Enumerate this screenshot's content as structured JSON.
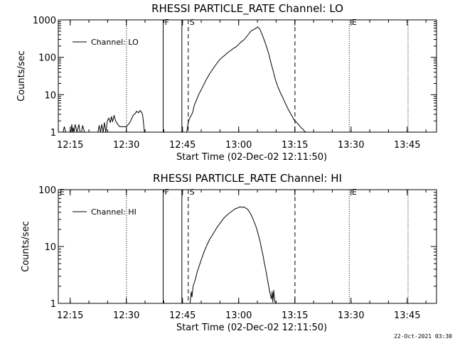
{
  "chart_data": [
    {
      "type": "line",
      "title": "RHESSI PARTICLE_RATE Channel: LO",
      "xlabel": "Start Time (02-Dec-02 12:11:50)",
      "ylabel": "Counts/sec",
      "yscale": "log",
      "ylim": [
        1,
        1000
      ],
      "xlim_minutes": [
        0,
        101
      ],
      "x_ticks": [
        "12:15",
        "12:30",
        "12:45",
        "13:00",
        "13:15",
        "13:30",
        "13:45"
      ],
      "x_tick_minutes": [
        3.17,
        18.17,
        33.17,
        48.17,
        63.17,
        78.17,
        93.17
      ],
      "y_ticks": [
        1,
        10,
        100,
        1000
      ],
      "y_tick_labels": [
        "1",
        "10",
        "100",
        "1000"
      ],
      "legend": "Channel: LO",
      "markers": [
        {
          "label": "F",
          "minute": 28,
          "style": "solid"
        },
        {
          "label": "",
          "minute": 33,
          "style": "solid"
        },
        {
          "label": "S",
          "minute": 34.7,
          "style": "dashed"
        },
        {
          "label": "",
          "minute": 63.2,
          "style": "dashed"
        },
        {
          "label": "",
          "minute": 18.2,
          "style": "dotted"
        },
        {
          "label": "",
          "minute": 77.7,
          "style": "dotted"
        },
        {
          "label": "E",
          "minute": 78,
          "style": "text"
        },
        {
          "label": "",
          "minute": 93.4,
          "style": "dotted"
        }
      ],
      "series": [
        {
          "name": "Channel: LO",
          "x": [
            0,
            1,
            1.3,
            1.6,
            2.0,
            3.4,
            3.6,
            3.8,
            4.0,
            4.2,
            4.5,
            5.0,
            5.5,
            5.8,
            6.2,
            6.5,
            7.0,
            10.6,
            10.9,
            11.3,
            11.6,
            12.0,
            12.3,
            12.7,
            13.1,
            13.5,
            13.9,
            14.2,
            14.5,
            14.9,
            15.3,
            15.9,
            16.4,
            16.9,
            17.5,
            18.2,
            19.1,
            20.0,
            20.6,
            20.9,
            21.4,
            21.9,
            22.5,
            22.8,
            23.0,
            34.3,
            34.7,
            35.0,
            35.4,
            35.9,
            36.3,
            36.8,
            37.5,
            38.4,
            39.4,
            40.4,
            41.4,
            42.3,
            43.3,
            44.3,
            45.4,
            46.4,
            47.6,
            48.7,
            49.7,
            50.6,
            51.5,
            52.3,
            52.9,
            53.3,
            53.8,
            54.3,
            54.8,
            55.3,
            55.8,
            56.3,
            56.8,
            57.4,
            58.0,
            58.7,
            59.3,
            60.0,
            60.7,
            61.5,
            62.3,
            63.0,
            63.7,
            64.4,
            64.9,
            65.3,
            65.6,
            65.8,
            66.1
          ],
          "y": [
            null,
            null,
            1,
            1.4,
            1,
            1,
            1.6,
            1,
            1.3,
            1,
            1.6,
            1,
            1.6,
            1,
            1,
            1.5,
            1,
            1,
            1.5,
            1,
            1.6,
            1,
            1.8,
            1,
            2.0,
            2.4,
            1.8,
            2.6,
            1.9,
            2.8,
            2.0,
            1.6,
            1.4,
            1.4,
            1.4,
            1.4,
            1.8,
            2.8,
            3.2,
            3.6,
            3.3,
            3.8,
            3.0,
            1.6,
            1,
            1,
            1.8,
            2.3,
            2.7,
            3.4,
            5.2,
            6.8,
            10.2,
            15.2,
            24,
            36,
            51,
            68,
            91,
            110,
            137,
            162,
            196,
            250,
            300,
            390,
            510,
            560,
            610,
            650,
            570,
            440,
            330,
            235,
            168,
            112,
            70,
            43,
            24.5,
            15.7,
            11.3,
            8.2,
            5.7,
            3.9,
            2.8,
            2.1,
            1.8,
            1.5,
            1.3,
            1.2,
            1.1,
            1.05,
            1
          ]
        }
      ]
    },
    {
      "type": "line",
      "title": "RHESSI PARTICLE_RATE Channel: HI",
      "xlabel": "Start Time (02-Dec-02 12:11:50)",
      "ylabel": "Counts/sec",
      "yscale": "log",
      "ylim": [
        1,
        100
      ],
      "xlim_minutes": [
        0,
        101
      ],
      "x_ticks": [
        "12:15",
        "12:30",
        "12:45",
        "13:00",
        "13:15",
        "13:30",
        "13:45"
      ],
      "x_tick_minutes": [
        3.17,
        18.17,
        33.17,
        48.17,
        63.17,
        78.17,
        93.17
      ],
      "y_ticks": [
        1,
        10,
        100
      ],
      "y_tick_labels": [
        "1",
        "10",
        "100"
      ],
      "legend": "Channel: HI",
      "markers": [
        {
          "label": "E",
          "minute": 0,
          "style": "text"
        },
        {
          "label": "F",
          "minute": 28,
          "style": "solid"
        },
        {
          "label": "",
          "minute": 33,
          "style": "solid"
        },
        {
          "label": "S",
          "minute": 34.7,
          "style": "dashed"
        },
        {
          "label": "",
          "minute": 63.2,
          "style": "dashed"
        },
        {
          "label": "",
          "minute": 18.2,
          "style": "dotted"
        },
        {
          "label": "",
          "minute": 77.7,
          "style": "dotted"
        },
        {
          "label": "E",
          "minute": 78,
          "style": "text"
        },
        {
          "label": "",
          "minute": 93.4,
          "style": "dotted"
        }
      ],
      "series": [
        {
          "name": "Channel: HI",
          "x": [
            35.2,
            35.5,
            35.7,
            36.0,
            36.3,
            36.7,
            37.1,
            37.6,
            38.2,
            38.8,
            39.6,
            40.4,
            41.4,
            42.3,
            43.3,
            44.3,
            45.4,
            46.3,
            47.1,
            47.8,
            48.5,
            49.1,
            49.6,
            50.1,
            50.6,
            51.1,
            51.7,
            52.3,
            52.9,
            53.4,
            53.9,
            54.3,
            54.7,
            55.0,
            55.4,
            55.7,
            56.0,
            56.3,
            56.6,
            56.9,
            57.1,
            57.3,
            57.5,
            57.7,
            57.9,
            58.0
          ],
          "y": [
            1,
            1.6,
            1.3,
            2.0,
            2.3,
            2.8,
            3.6,
            4.5,
            5.9,
            7.7,
            10.3,
            13.3,
            17.0,
            21.3,
            26.3,
            32,
            37.5,
            41.5,
            45.5,
            47.5,
            50,
            49,
            49.5,
            47,
            45,
            40,
            34,
            27,
            21.5,
            16.2,
            12.2,
            9.0,
            6.9,
            5.2,
            3.9,
            3.0,
            2.3,
            1.8,
            1.45,
            1.2,
            1.6,
            1.05,
            1.7,
            1.3,
            1.05,
            1
          ]
        }
      ]
    }
  ],
  "footer": {
    "timestamp": "22-Oct-2021 03:30"
  }
}
